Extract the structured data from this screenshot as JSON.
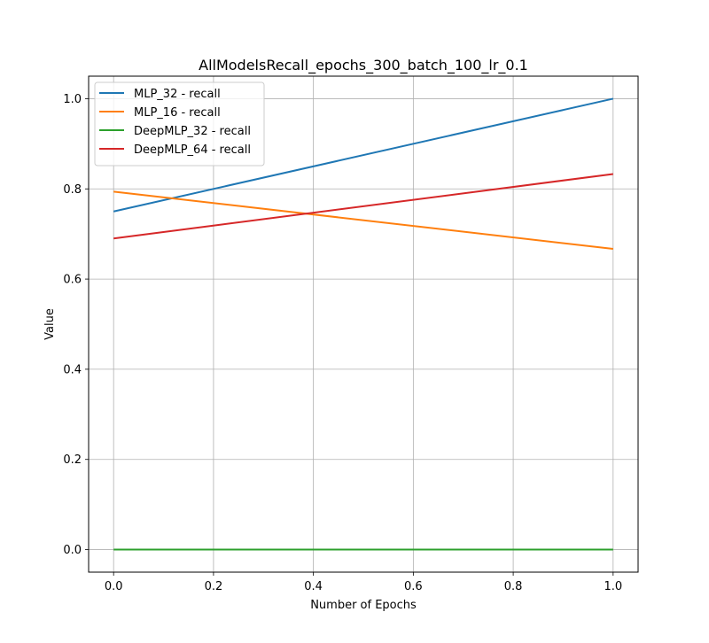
{
  "chart_data": {
    "type": "line",
    "title": "AllModelsRecall_epochs_300_batch_100_lr_0.1",
    "xlabel": "Number of Epochs",
    "ylabel": "Value",
    "xlim": [
      -0.05,
      1.05
    ],
    "ylim": [
      -0.05,
      1.05
    ],
    "xticks": [
      "0.0",
      "0.2",
      "0.4",
      "0.6",
      "0.8",
      "1.0"
    ],
    "yticks": [
      "0.0",
      "0.2",
      "0.4",
      "0.6",
      "0.8",
      "1.0"
    ],
    "grid": true,
    "legend_position": "top-left",
    "x": [
      0,
      1
    ],
    "series": [
      {
        "name": "MLP_32 - recall",
        "color": "#1f77b4",
        "values": [
          0.75,
          1.0
        ]
      },
      {
        "name": "MLP_16 - recall",
        "color": "#ff7f0e",
        "values": [
          0.794,
          0.667
        ]
      },
      {
        "name": "DeepMLP_32 - recall",
        "color": "#2ca02c",
        "values": [
          0.0,
          0.0
        ]
      },
      {
        "name": "DeepMLP_64 - recall",
        "color": "#d62728",
        "values": [
          0.69,
          0.833
        ]
      }
    ]
  }
}
